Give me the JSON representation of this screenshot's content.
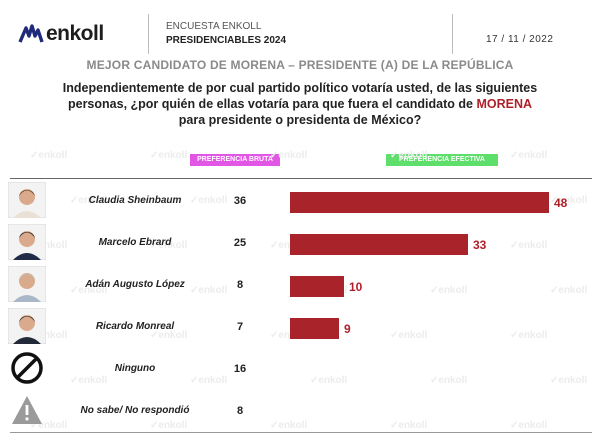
{
  "header": {
    "logo_text": "enkoll",
    "survey_line1": "ENCUESTA ENKOLL",
    "survey_line2": "PRESIDENCIABLES 2024",
    "date": "17 / 11 / 2022"
  },
  "subtitle": "MEJOR CANDIDATO DE MORENA – PRESIDENTE (A) DE LA REPÚBLICA",
  "question": {
    "line1": "Independientemente de por cual partido político votaría usted, de las siguientes",
    "line2_before": "personas, ¿por quién de ellas votaría para que fuera el candidato de",
    "line2_highlight": "MORENA",
    "line3": "para presidente o presidenta de México?"
  },
  "legend": {
    "bruta": "PREFERENCIA BRUTA",
    "efectiva": "PREFERENCIA EFECTIVA"
  },
  "watermark": "enkoll",
  "colors": {
    "bar": "#a8232a",
    "highlight": "#b0202a",
    "bruta_tag": "#e256e6",
    "efectiva_tag": "#5ede6a"
  },
  "chart_data": {
    "type": "bar",
    "categories": [
      "Claudia Sheinbaum",
      "Marcelo Ebrard",
      "Adán Augusto López",
      "Ricardo Monreal",
      "Ninguno",
      "No sabe/ No respondió"
    ],
    "series": [
      {
        "name": "PREFERENCIA BRUTA",
        "values": [
          36,
          25,
          8,
          7,
          16,
          8
        ]
      },
      {
        "name": "PREFERENCIA EFECTIVA",
        "values": [
          48,
          33,
          10,
          9,
          null,
          null
        ]
      }
    ],
    "ylim": [
      0,
      50
    ],
    "icons": [
      "avatar-sheinbaum",
      "avatar-ebrard",
      "avatar-lopez",
      "avatar-monreal",
      "none-icon",
      "warning-icon"
    ]
  }
}
